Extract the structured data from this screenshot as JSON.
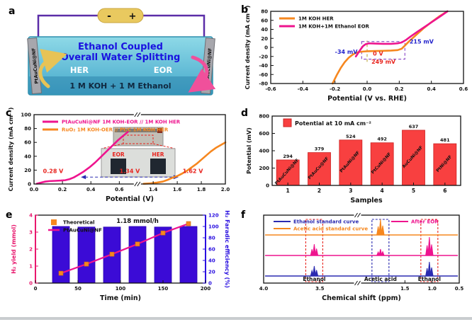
{
  "panel_labels": {
    "a": "a",
    "b": "b",
    "c": "c",
    "d": "d",
    "e": "e",
    "f": "f"
  },
  "diagram": {
    "battery_minus": "-",
    "battery_plus": "+",
    "title_line1": "Ethanol Coupled",
    "title_line2": "Overall Water Splitting",
    "left_arrow_label": "HER",
    "right_arrow_label": "EOR",
    "electrolyte": "1 M KOH + 1 M Ethanol",
    "left_electrode": "PtAuCuNi@NF",
    "right_electrode": "PtAuCuNi@NF",
    "colors": {
      "title": "#1a12e0",
      "wire": "#5b2da8",
      "battery": "#e9c95f",
      "water": "#58bdd6",
      "her_arrow": "#e7c356",
      "eor_arrow": "#f0509b"
    }
  },
  "chart_data": [
    {
      "id": "b",
      "type": "line",
      "xlabel": "Potential (V vs. RHE)",
      "ylabel": "Current density (mA cm⁻²)",
      "xlim": [
        -0.6,
        0.6
      ],
      "ylim": [
        -80,
        80
      ],
      "xticks": [
        -0.6,
        -0.4,
        -0.2,
        0.0,
        0.2,
        0.4,
        0.6
      ],
      "xtick_decimals": 1,
      "yticks": [
        -80,
        -60,
        -40,
        -20,
        0,
        20,
        40,
        60,
        80
      ],
      "series": [
        {
          "name": "1M KOH HER",
          "color": "#f6871f",
          "points": [
            [
              -0.215,
              -80
            ],
            [
              -0.19,
              -62
            ],
            [
              -0.165,
              -46
            ],
            [
              -0.14,
              -33
            ],
            [
              -0.115,
              -23
            ],
            [
              -0.09,
              -16
            ],
            [
              -0.07,
              -12
            ],
            [
              -0.05,
              -10
            ],
            [
              -0.02,
              -9
            ],
            [
              0.0,
              -8.5
            ],
            [
              0.05,
              -8
            ],
            [
              0.1,
              -7.5
            ],
            [
              0.15,
              -7
            ],
            [
              0.19,
              -6
            ],
            [
              0.215,
              -3
            ],
            [
              0.235,
              4
            ],
            [
              0.26,
              13
            ],
            [
              0.3,
              26
            ],
            [
              0.35,
              42
            ],
            [
              0.4,
              56
            ],
            [
              0.45,
              69
            ],
            [
              0.5,
              80
            ]
          ]
        },
        {
          "name": "1M KOH+1M Ethanol EOR",
          "color": "#ee148e",
          "points": [
            [
              -0.07,
              -20
            ],
            [
              -0.055,
              -12
            ],
            [
              -0.04,
              -4
            ],
            [
              -0.025,
              3
            ],
            [
              -0.01,
              7
            ],
            [
              0.01,
              9
            ],
            [
              0.05,
              8.5
            ],
            [
              0.1,
              8
            ],
            [
              0.15,
              8
            ],
            [
              0.19,
              9
            ],
            [
              0.215,
              11
            ],
            [
              0.24,
              16
            ],
            [
              0.27,
              24
            ],
            [
              0.31,
              34
            ],
            [
              0.36,
              46
            ],
            [
              0.41,
              58
            ],
            [
              0.46,
              70
            ],
            [
              0.5,
              80
            ]
          ]
        }
      ],
      "guides": [
        {
          "type": "rect",
          "x1": -0.034,
          "y1": -26,
          "x2": 0.235,
          "y2": 13,
          "color": "#7a2fbe"
        },
        {
          "type": "vline",
          "x": 0,
          "y1": -32,
          "y2": 15,
          "color": "#b8a22e"
        }
      ],
      "annotations": [
        {
          "text": "-34 mV",
          "fx": 0.45,
          "y": -14,
          "color": "#2222cc",
          "anchor": "end",
          "size": 8
        },
        {
          "text": "0 V",
          "fx": 0.53,
          "y": -18,
          "color": "#e8251f",
          "anchor": "start",
          "size": 8
        },
        {
          "text": "215 mV",
          "fx": 0.72,
          "y": 9,
          "color": "#2222cc",
          "anchor": "start",
          "size": 8
        },
        {
          "text": "249 mV",
          "fx": 0.585,
          "y": -36,
          "color": "#e8251f",
          "anchor": "middle",
          "size": 8
        }
      ]
    },
    {
      "id": "c",
      "type": "line",
      "xlabel": "Potential (V)",
      "ylabel": "Current density (mA cm⁻²)",
      "ylim": [
        0,
        100
      ],
      "yticks": [
        0,
        20,
        40,
        60,
        80,
        100
      ],
      "x_segments": [
        {
          "range": [
            0.0,
            0.7
          ],
          "frac": [
            0,
            0.52
          ]
        },
        {
          "range": [
            1.3,
            2.0
          ],
          "frac": [
            0.56,
            1.0
          ]
        }
      ],
      "xticks": [
        0.0,
        0.2,
        0.4,
        0.6,
        1.4,
        1.6,
        1.8,
        2.0
      ],
      "xtick_decimals": 1,
      "legend_colored_text": true,
      "series": [
        {
          "name": "PtAuCuNi@NF 1M KOH-EOR // 1M KOH HER",
          "color": "#ee148e",
          "points": [
            [
              0.02,
              0.5
            ],
            [
              0.05,
              2
            ],
            [
              0.08,
              3.5
            ],
            [
              0.11,
              4.2
            ],
            [
              0.15,
              4.6
            ],
            [
              0.19,
              5
            ],
            [
              0.22,
              5.5
            ],
            [
              0.25,
              7
            ],
            [
              0.28,
              9.5
            ],
            [
              0.31,
              13
            ],
            [
              0.35,
              18
            ],
            [
              0.39,
              24
            ],
            [
              0.43,
              31
            ],
            [
              0.47,
              39
            ],
            [
              0.51,
              47
            ],
            [
              0.55,
              55
            ],
            [
              0.59,
              63
            ],
            [
              0.63,
              70
            ],
            [
              0.66,
              75
            ]
          ]
        },
        {
          "name": "RuO₂ 1M KOH-OER // Pt/C 1M KOH HER",
          "color": "#f6871f",
          "points": [
            [
              1.32,
              0.3
            ],
            [
              1.38,
              1
            ],
            [
              1.43,
              2
            ],
            [
              1.48,
              3.5
            ],
            [
              1.52,
              6
            ],
            [
              1.56,
              9
            ],
            [
              1.6,
              11.5
            ],
            [
              1.64,
              15
            ],
            [
              1.68,
              19
            ],
            [
              1.72,
              24
            ],
            [
              1.76,
              29
            ],
            [
              1.8,
              35
            ],
            [
              1.84,
              41
            ],
            [
              1.88,
              47
            ],
            [
              1.92,
              52
            ],
            [
              1.96,
              56
            ],
            [
              2.0,
              60
            ]
          ]
        }
      ],
      "guides": [
        {
          "type": "harrow",
          "fx1": 0.245,
          "fx2": 0.755,
          "y": 10,
          "color": "#2a2ab0"
        }
      ],
      "annotations": [
        {
          "text": "0.28 V",
          "fx": 0.1,
          "y": 16,
          "color": "#e8251f",
          "anchor": "middle",
          "size": 8
        },
        {
          "text": "1.34 V",
          "fx": 0.5,
          "y": 16,
          "color": "#e8251f",
          "anchor": "middle",
          "size": 8
        },
        {
          "text": "1.62 V",
          "fx": 0.83,
          "y": 16,
          "color": "#e8251f",
          "anchor": "middle",
          "size": 8
        }
      ],
      "inset": {
        "labels": [
          "EOR",
          "HER"
        ],
        "label_color": "#e8251f"
      }
    },
    {
      "id": "d",
      "type": "bar",
      "xlabel": "Samples",
      "ylabel": "Potential (mV)",
      "ylim": [
        0,
        800
      ],
      "yticks": [
        0,
        200,
        400,
        600,
        800
      ],
      "legend": "Potential at 10 mA cm⁻²",
      "bar_color": "#f84040",
      "categories": [
        "1",
        "2",
        "3",
        "4",
        "5",
        "6"
      ],
      "values": [
        294,
        379,
        524,
        492,
        637,
        481
      ],
      "bar_labels": [
        "PtAuCuNi@NF",
        "PtAuCu@NF",
        "PtAuNi@NF",
        "PtCuNi@NF",
        "AuCuNi@NF",
        "PtNi@NF"
      ]
    },
    {
      "id": "e",
      "type": "dual",
      "xlabel": "Time (min)",
      "ylabel_left": "H₂ yield (mmol)",
      "ylabel_right": "H₂ Faradic efficiency (%)",
      "xlim": [
        0,
        200
      ],
      "xticks": [
        0,
        50,
        100,
        150,
        200
      ],
      "ylim_left": [
        0,
        4
      ],
      "yticks_left": [
        0,
        1,
        2,
        3,
        4
      ],
      "ylim_right": [
        0,
        120
      ],
      "yticks_right": [
        0,
        20,
        40,
        60,
        80,
        100,
        120
      ],
      "left_color": "#e8186d",
      "right_color": "#2a10e0",
      "bar_color": "#3b0bd6",
      "bars": {
        "x": [
          30,
          60,
          90,
          120,
          150,
          180
        ],
        "efficiency": [
          100,
          99,
          99,
          100,
          99,
          100
        ]
      },
      "line": {
        "name": "PtAuCuNi@NF",
        "color": "#ee148e",
        "marker_color": "#f6871f",
        "points": [
          [
            30,
            0.58
          ],
          [
            60,
            1.12
          ],
          [
            90,
            1.7
          ],
          [
            120,
            2.3
          ],
          [
            150,
            2.95
          ],
          [
            180,
            3.5
          ]
        ]
      },
      "legend": [
        {
          "label": "Theoretical",
          "marker": "square",
          "color": "#f6871f"
        },
        {
          "label": "PtAuCuNi@NF",
          "marker": "line",
          "color": "#ee148e"
        }
      ],
      "annotation": {
        "text": "1.18 mmol/h",
        "fx": 0.6,
        "y": 3.55,
        "color": "#111111"
      }
    },
    {
      "id": "f",
      "type": "nmr",
      "xlabel": "Chemical shift (ppm)",
      "x_segments": [
        {
          "range": [
            4.0,
            3.2
          ],
          "frac": [
            0,
            0.46
          ]
        },
        {
          "range": [
            2.3,
            0.5
          ],
          "frac": [
            0.5,
            1.0
          ]
        }
      ],
      "xticks": [
        4.0,
        3.5,
        1.5,
        1.0,
        0.5
      ],
      "xtick_decimals": 1,
      "spectra": [
        {
          "name": "Ethanol standard curve",
          "color": "#2a2ab0",
          "row": 0,
          "peaks": [
            {
              "x": 3.55,
              "h": 14
            },
            {
              "x": 1.05,
              "h": 20
            }
          ]
        },
        {
          "name": "After EOR",
          "color": "#ee148e",
          "row": 1,
          "peaks": [
            {
              "x": 3.55,
              "h": 16
            },
            {
              "x": 1.95,
              "h": 9
            },
            {
              "x": 1.05,
              "h": 26
            }
          ]
        },
        {
          "name": "Acetic acid standard curve",
          "color": "#f6871f",
          "row": 2,
          "peaks": [
            {
              "x": 1.95,
              "h": 22
            }
          ]
        }
      ],
      "legend": [
        {
          "label": "Ethanol standard curve",
          "color": "#2a2ab0"
        },
        {
          "label": "Acetic acid standard curve",
          "color": "#f6871f"
        },
        {
          "label": "After EOR",
          "color": "#ee148e"
        }
      ],
      "boxes": [
        {
          "x": 3.55,
          "color": "#e8251f"
        },
        {
          "x": 1.95,
          "color": "#2a2ab0"
        },
        {
          "x": 1.05,
          "color": "#e8251f"
        }
      ],
      "peak_labels": [
        {
          "text": "Ethanol",
          "x": 3.55
        },
        {
          "text": "Acetic acid",
          "x": 1.95
        },
        {
          "text": "Ethanol",
          "x": 1.05
        }
      ]
    }
  ]
}
